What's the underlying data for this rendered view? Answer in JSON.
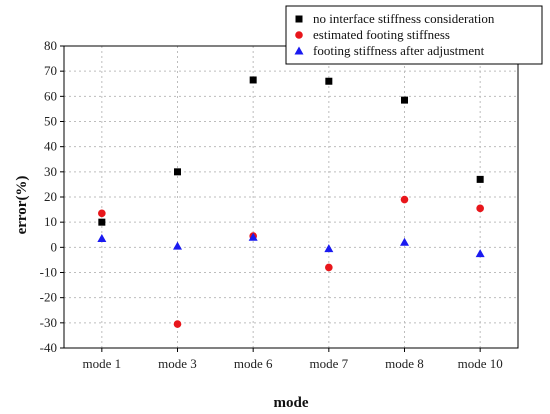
{
  "chart_data": {
    "type": "scatter",
    "categories": [
      "mode 1",
      "mode 3",
      "mode 6",
      "mode 7",
      "mode 8",
      "mode 10"
    ],
    "series": [
      {
        "name": "no interface stiffness consideration",
        "marker": "square",
        "color": "#000000",
        "values": [
          10,
          30,
          66.5,
          66,
          58.5,
          27
        ]
      },
      {
        "name": "estimated footing stiffness",
        "marker": "circle",
        "color": "#e8161b",
        "values": [
          13.5,
          -30.5,
          4.5,
          -8,
          19,
          15.5
        ]
      },
      {
        "name": "footing stiffness after adjustment",
        "marker": "triangle",
        "color": "#1a1af0",
        "values": [
          3.5,
          0.5,
          4,
          -0.5,
          2,
          -2.5
        ]
      }
    ],
    "xlabel": "mode",
    "ylabel": "error(%)",
    "ylim": [
      -40,
      80
    ],
    "yticks": [
      -40,
      -30,
      -20,
      -10,
      0,
      10,
      20,
      30,
      40,
      50,
      60,
      70,
      80
    ],
    "grid": true,
    "legend_position": "top-right"
  }
}
